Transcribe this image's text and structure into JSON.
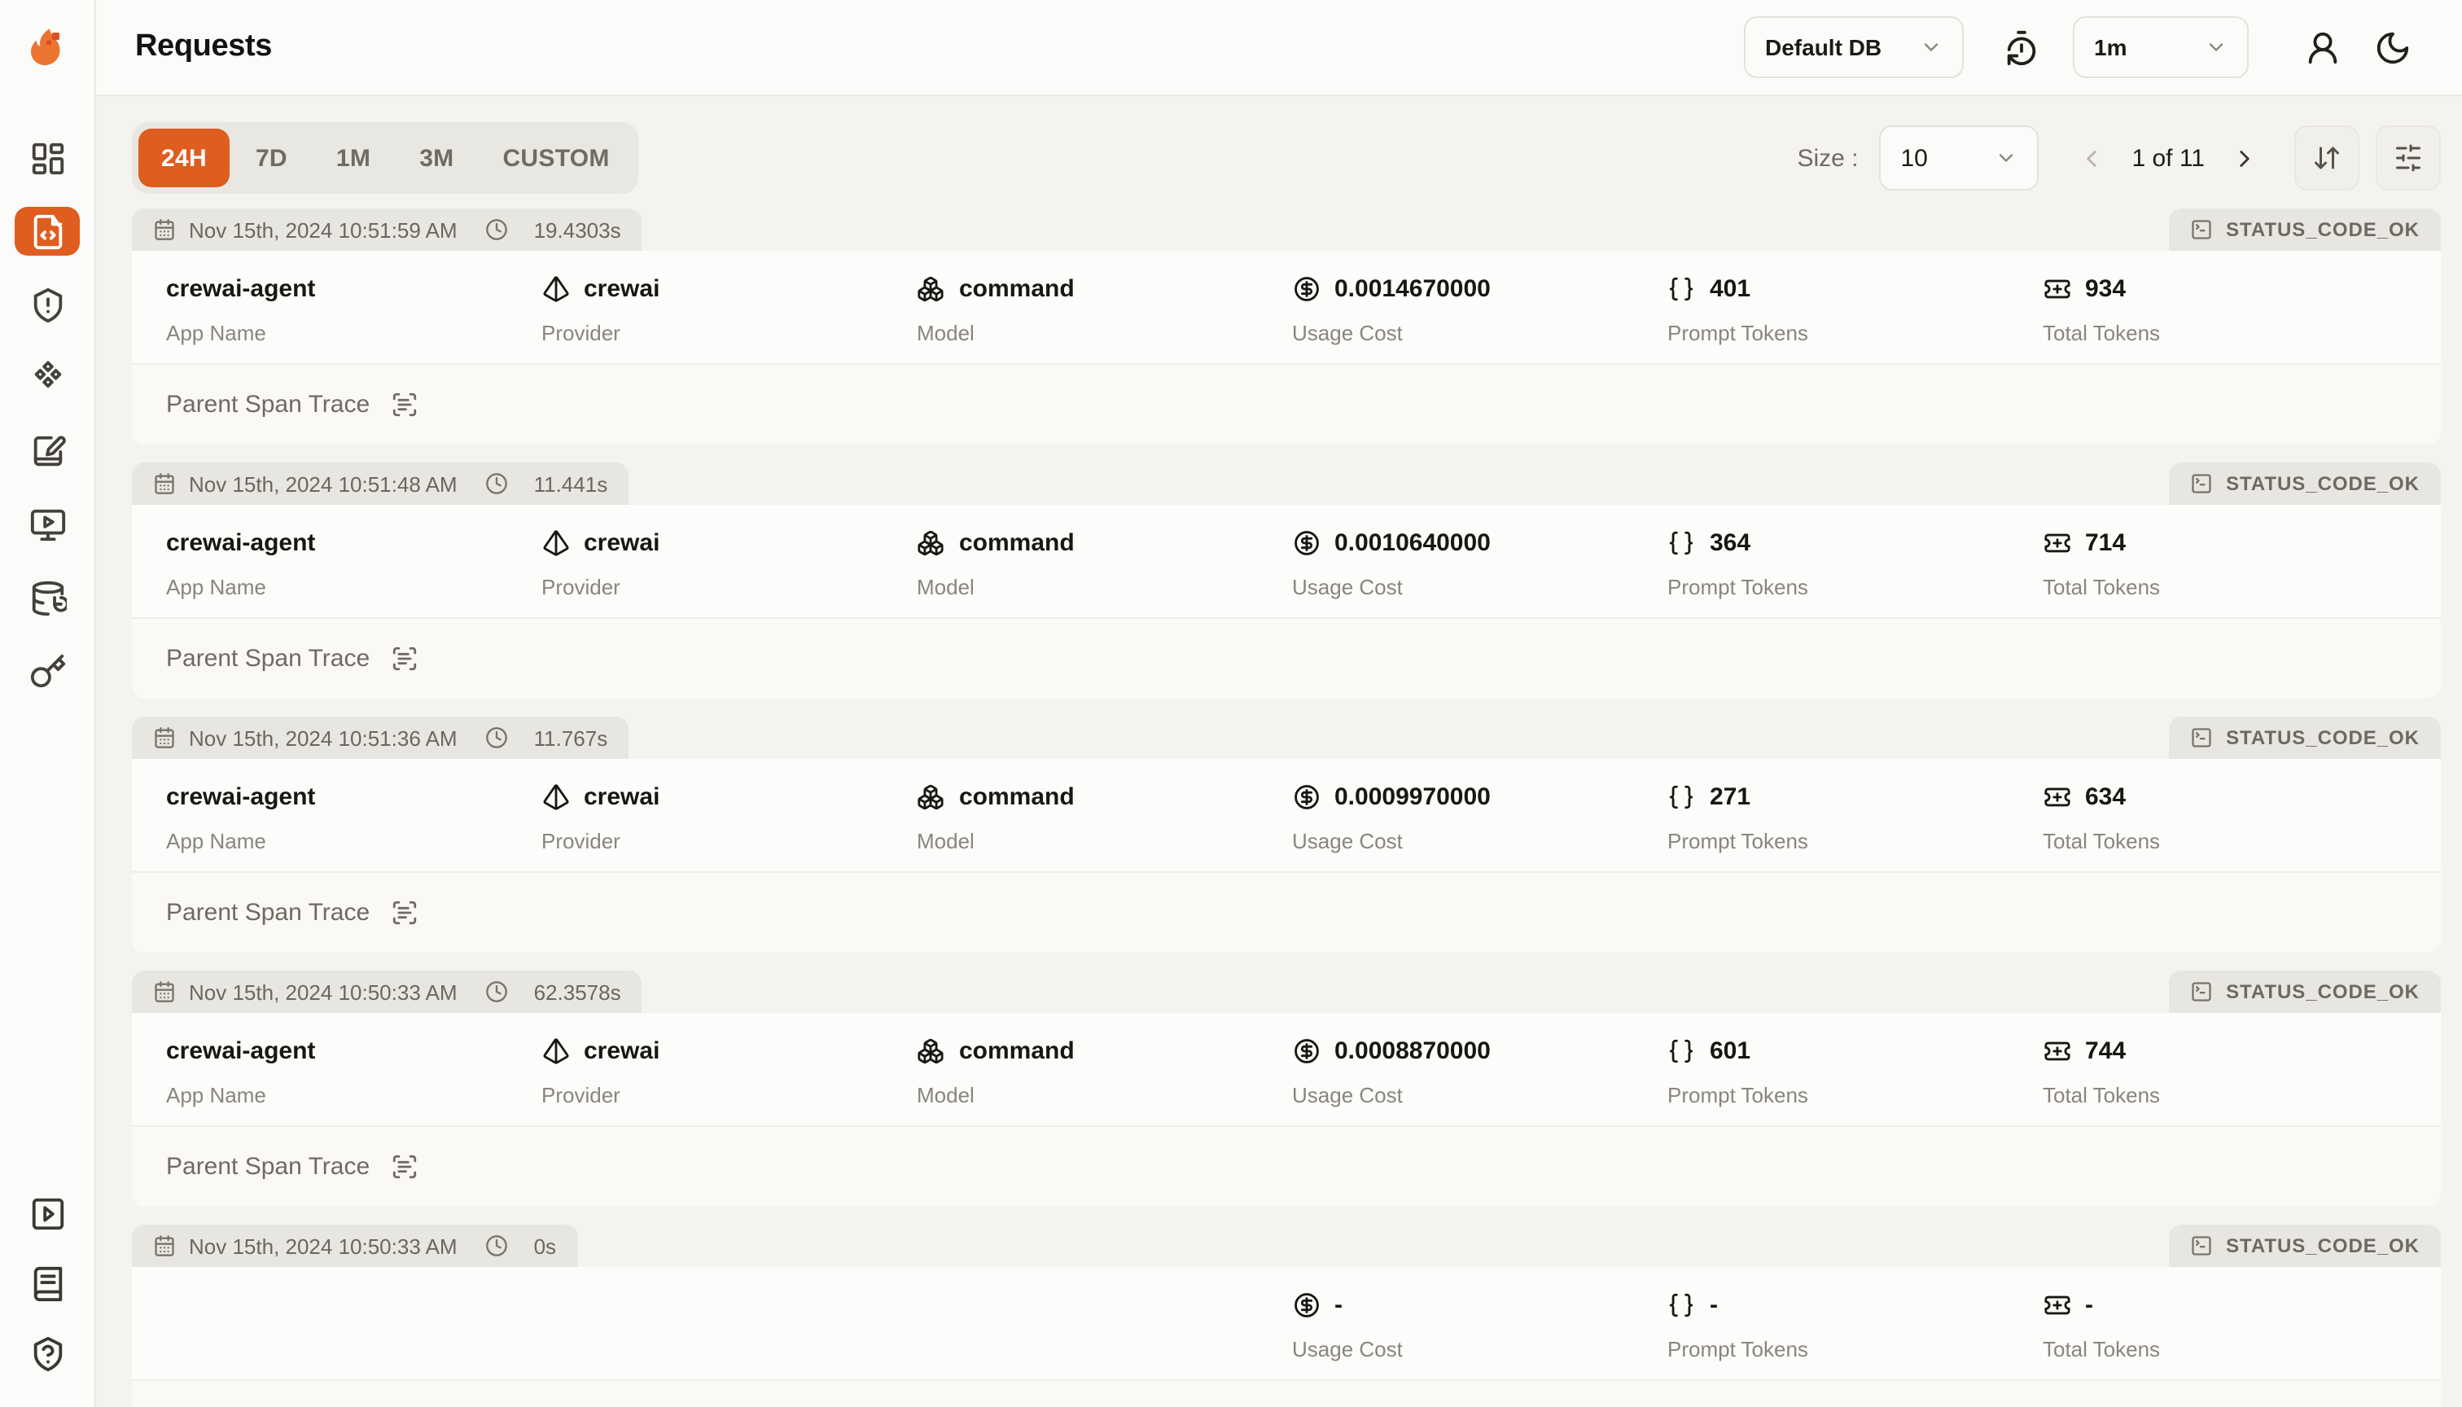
{
  "colors": {
    "accent": "#DE5D1F",
    "page_bg": "#F4F3F0",
    "card_bg": "#FCFCFB",
    "tab_bg": "#E8E6E1"
  },
  "header": {
    "title": "Requests",
    "database_select": {
      "value": "Default DB"
    },
    "interval_select": {
      "value": "1m"
    }
  },
  "sidebar": {
    "items": [
      {
        "name": "dashboard",
        "icon": "layout-dashboard",
        "active": false
      },
      {
        "name": "requests",
        "icon": "file-code",
        "active": true
      },
      {
        "name": "exceptions",
        "icon": "shield-alert",
        "active": false
      },
      {
        "name": "prompts",
        "icon": "component",
        "active": false
      },
      {
        "name": "vault",
        "icon": "notebook-pen",
        "active": false
      },
      {
        "name": "playground",
        "icon": "monitor-play",
        "active": false
      },
      {
        "name": "databases",
        "icon": "database-backup",
        "active": false
      },
      {
        "name": "api-keys",
        "icon": "key",
        "active": false
      }
    ],
    "footer_items": [
      {
        "name": "getting-started",
        "icon": "square-play",
        "active": false
      },
      {
        "name": "documentation",
        "icon": "book-text",
        "active": false
      },
      {
        "name": "support",
        "icon": "shield-question",
        "active": false
      }
    ]
  },
  "toolbar": {
    "ranges": [
      "24H",
      "7D",
      "1M",
      "3M",
      "CUSTOM"
    ],
    "active_range": "24H",
    "size_label": "Size :",
    "size_value": "10",
    "page_indicator": "1 of 11"
  },
  "labels": {
    "app_name": "App Name",
    "provider": "Provider",
    "model": "Model",
    "usage_cost": "Usage Cost",
    "prompt_tokens": "Prompt Tokens",
    "total_tokens": "Total Tokens",
    "parent_span": "Parent Span Trace"
  },
  "requests": [
    {
      "timestamp": "Nov 15th, 2024 10:51:59 AM",
      "duration": "19.4303s",
      "status": "STATUS_CODE_OK",
      "app_name": "crewai-agent",
      "provider": "crewai",
      "model": "command",
      "usage_cost": "0.0014670000",
      "prompt_tokens": "401",
      "total_tokens": "934"
    },
    {
      "timestamp": "Nov 15th, 2024 10:51:48 AM",
      "duration": "11.441s",
      "status": "STATUS_CODE_OK",
      "app_name": "crewai-agent",
      "provider": "crewai",
      "model": "command",
      "usage_cost": "0.0010640000",
      "prompt_tokens": "364",
      "total_tokens": "714"
    },
    {
      "timestamp": "Nov 15th, 2024 10:51:36 AM",
      "duration": "11.767s",
      "status": "STATUS_CODE_OK",
      "app_name": "crewai-agent",
      "provider": "crewai",
      "model": "command",
      "usage_cost": "0.0009970000",
      "prompt_tokens": "271",
      "total_tokens": "634"
    },
    {
      "timestamp": "Nov 15th, 2024 10:50:33 AM",
      "duration": "62.3578s",
      "status": "STATUS_CODE_OK",
      "app_name": "crewai-agent",
      "provider": "crewai",
      "model": "command",
      "usage_cost": "0.0008870000",
      "prompt_tokens": "601",
      "total_tokens": "744"
    },
    {
      "timestamp": "Nov 15th, 2024 10:50:33 AM",
      "duration": "0s",
      "status": "STATUS_CODE_OK",
      "app_name": null,
      "provider": null,
      "model": null,
      "usage_cost": "-",
      "prompt_tokens": "-",
      "total_tokens": "-"
    }
  ]
}
